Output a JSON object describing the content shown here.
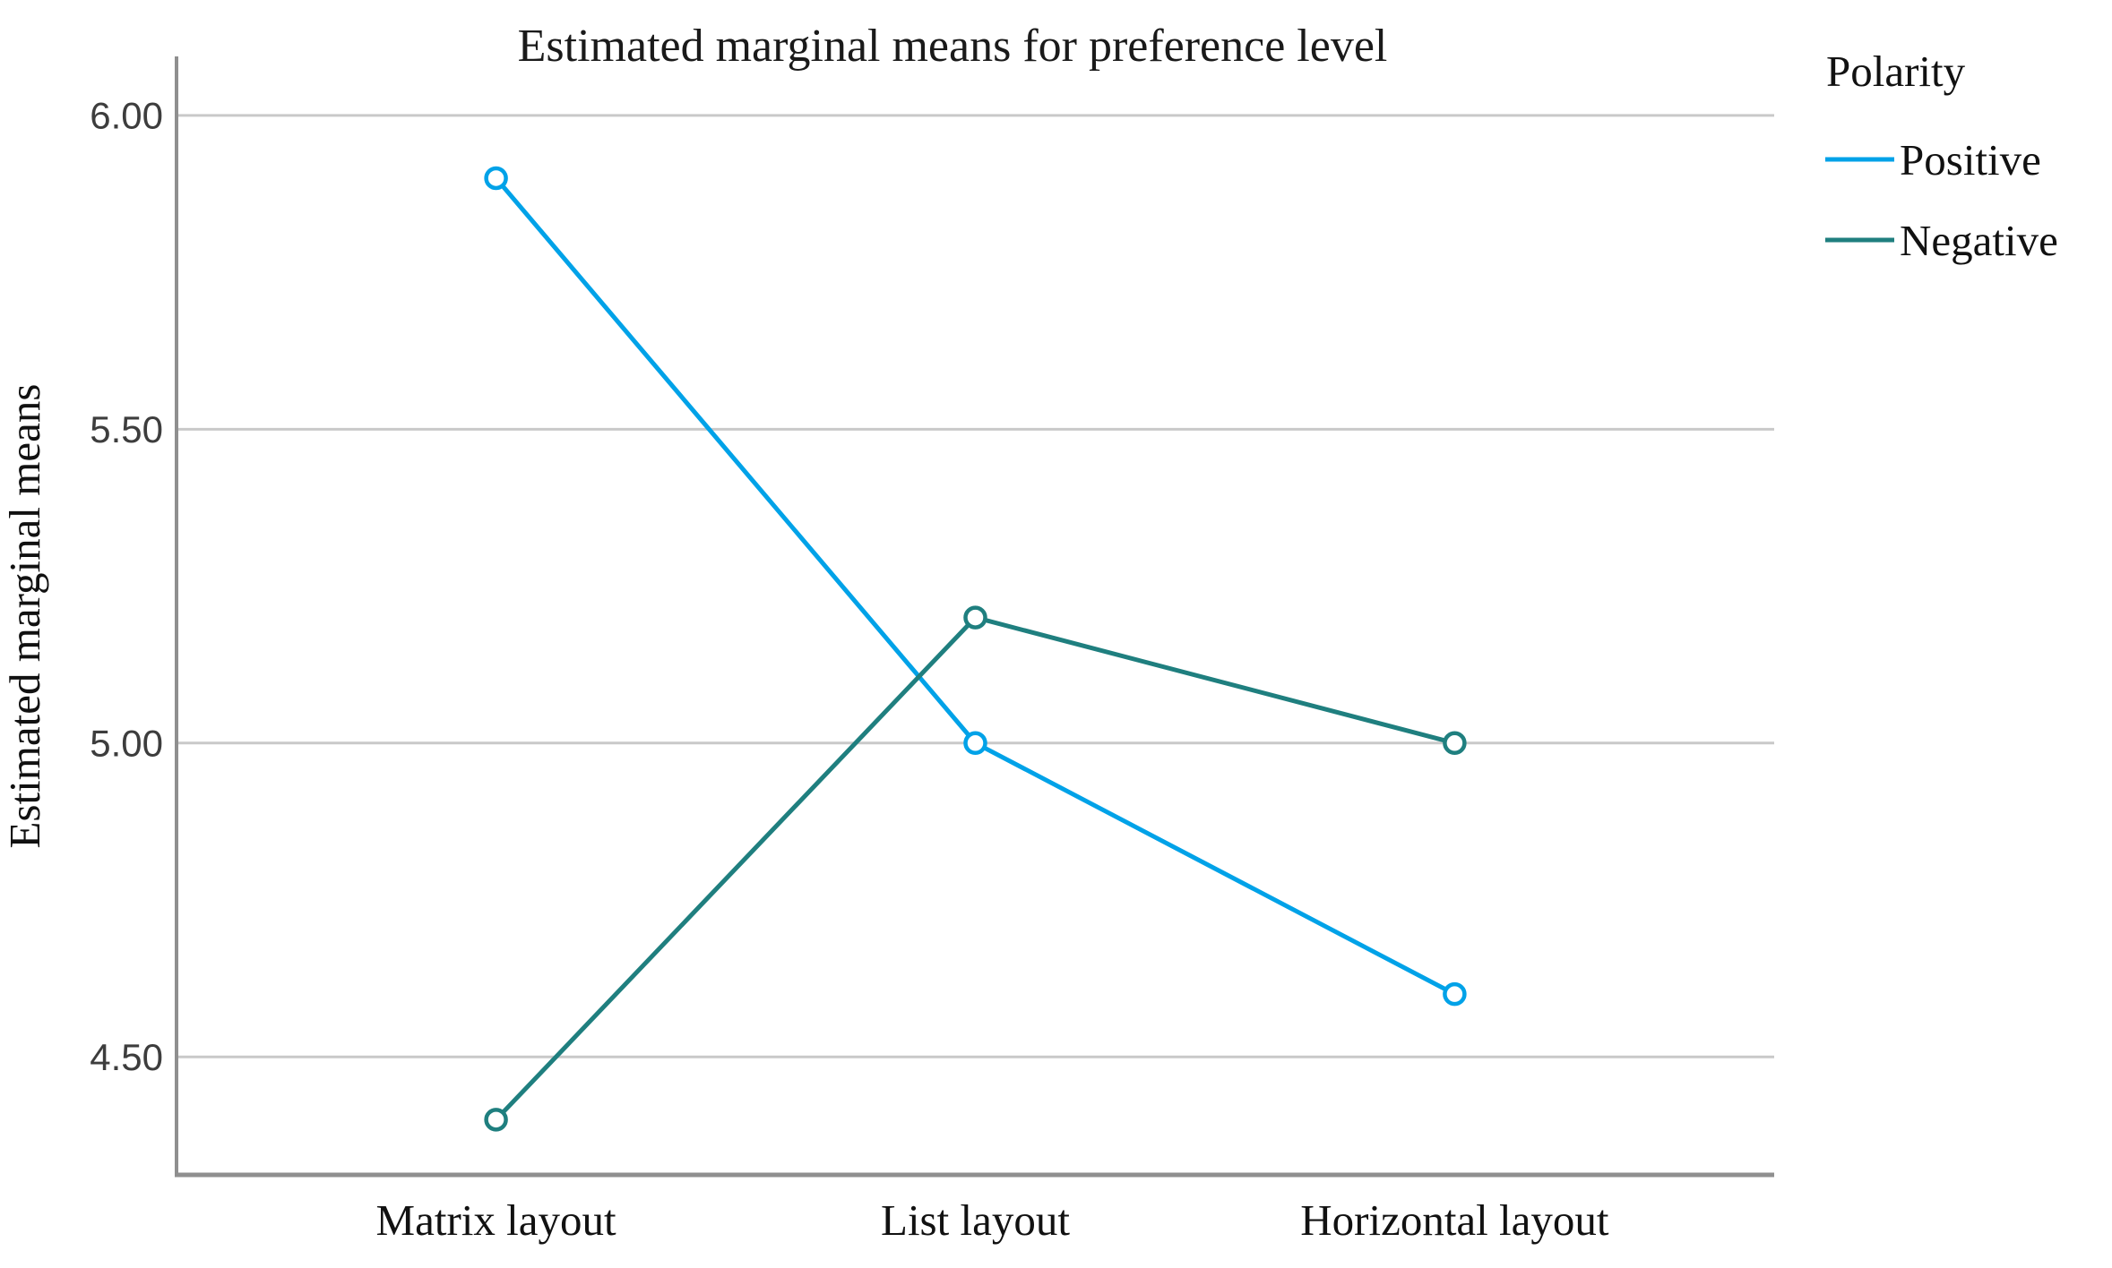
{
  "chart_data": {
    "type": "line",
    "title": "Estimated marginal means for preference level",
    "ylabel": "Estimated marginal means",
    "xlabel": "",
    "legend_title": "Polarity",
    "legend_position": "right",
    "grid": "horizontal",
    "categories": [
      "Matrix layout",
      "List layout",
      "Horizontal layout"
    ],
    "series": [
      {
        "name": "Positive",
        "color": "#00A2E8",
        "values": [
          5.9,
          5.0,
          4.6
        ]
      },
      {
        "name": "Negative",
        "color": "#1F7F7F",
        "values": [
          4.4,
          5.2,
          5.0
        ]
      }
    ],
    "yticks": [
      {
        "value": 6.0,
        "label": "6.00"
      },
      {
        "value": 5.5,
        "label": "5.50"
      },
      {
        "value": 5.0,
        "label": "5.00"
      },
      {
        "value": 4.5,
        "label": "4.50"
      }
    ],
    "ylim": [
      4.312,
      6.094
    ],
    "marker_style": "open-circle",
    "colors": {
      "gridline": "#c9c9c9",
      "axis": "#8f8f8f",
      "tick_label": "#3d3d3d",
      "text": "#111111"
    }
  }
}
